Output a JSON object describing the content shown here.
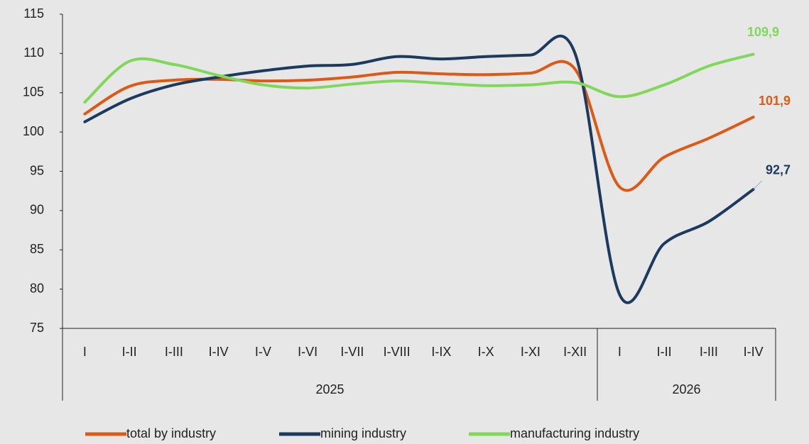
{
  "chart_data": {
    "type": "line",
    "categories": [
      "I",
      "I-II",
      "I-III",
      "I-IV",
      "I-V",
      "I-VI",
      "I-VII",
      "I-VIII",
      "I-IX",
      "I-X",
      "I-XI",
      "I-XII",
      "I",
      "I-II",
      "I-III",
      "I-IV"
    ],
    "groups": [
      {
        "name": "2025",
        "count": 12
      },
      {
        "name": "2026",
        "count": 4
      }
    ],
    "ylim": [
      75,
      115
    ],
    "yticks": [
      75,
      80,
      85,
      90,
      95,
      100,
      105,
      110,
      115
    ],
    "legend": "bottom",
    "series": [
      {
        "name": "total by industry",
        "color": "#dd5a16",
        "values": [
          102.3,
          105.8,
          106.6,
          106.7,
          106.5,
          106.6,
          107.0,
          107.6,
          107.4,
          107.3,
          107.5,
          108.0,
          93.0,
          96.8,
          99.2,
          101.9
        ],
        "value_labels": [
          null,
          null,
          null,
          null,
          null,
          null,
          null,
          null,
          null,
          null,
          null,
          null,
          null,
          null,
          null,
          "101,9"
        ]
      },
      {
        "name": "mining industry",
        "color": "#1c3a5e",
        "values": [
          101.3,
          104.2,
          106.0,
          107.0,
          107.8,
          108.4,
          108.6,
          109.6,
          109.3,
          109.6,
          109.8,
          110.0,
          79.3,
          85.8,
          88.6,
          92.7
        ],
        "value_labels": [
          null,
          null,
          null,
          null,
          null,
          null,
          null,
          null,
          null,
          null,
          null,
          null,
          null,
          null,
          null,
          "92,7"
        ]
      },
      {
        "name": "manufacturing industry",
        "color": "#7fd858",
        "values": [
          103.8,
          109.0,
          108.6,
          107.2,
          106.0,
          105.6,
          106.1,
          106.5,
          106.2,
          105.9,
          106.0,
          106.3,
          104.5,
          106.0,
          108.4,
          109.9
        ],
        "value_labels": [
          null,
          null,
          null,
          null,
          null,
          null,
          null,
          null,
          null,
          null,
          null,
          null,
          null,
          null,
          null,
          "109,9"
        ]
      }
    ]
  }
}
